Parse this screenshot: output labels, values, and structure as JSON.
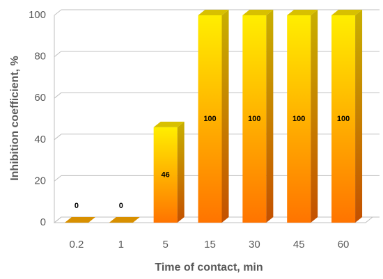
{
  "chart_data": {
    "type": "bar3d",
    "xlabel": "Time of contact, min",
    "ylabel": "Inhibition coefficient, %",
    "categories": [
      "0.2",
      "1",
      "5",
      "15",
      "30",
      "45",
      "60"
    ],
    "values": [
      0,
      0,
      46,
      100,
      100,
      100,
      100
    ],
    "ylim": [
      0,
      100
    ],
    "yticks": [
      0,
      20,
      40,
      60,
      80,
      100
    ],
    "grid": true,
    "color": "#ff8a00"
  }
}
